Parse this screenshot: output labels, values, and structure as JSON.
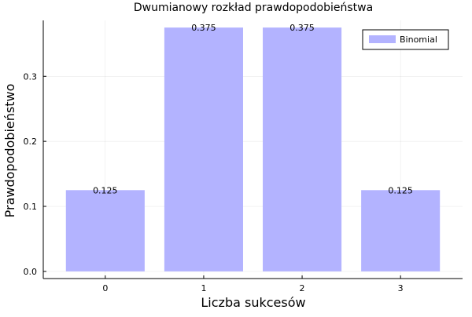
{
  "chart_data": {
    "type": "bar",
    "title": "Dwumianowy rozkład prawdopodobieństwa",
    "xlabel": "Liczba sukcesów",
    "ylabel": "Prawdopodobieństwo",
    "categories": [
      "0",
      "1",
      "2",
      "3"
    ],
    "x": [
      0,
      1,
      2,
      3
    ],
    "series": [
      {
        "name": "Binomial",
        "values": [
          0.125,
          0.375,
          0.375,
          0.125
        ],
        "data_labels": [
          "0.125",
          "0.375",
          "0.375",
          "0.125"
        ],
        "color": "#b3b3ff"
      }
    ],
    "xlim": [
      -0.63,
      3.63
    ],
    "ylim": [
      -0.011,
      0.386
    ],
    "yticks": [
      0.0,
      0.1,
      0.2,
      0.3
    ],
    "ytick_labels": [
      "0.0",
      "0.1",
      "0.2",
      "0.3"
    ],
    "xtick_labels": [
      "0",
      "1",
      "2",
      "3"
    ],
    "bar_width": 0.8,
    "grid": true,
    "legend_position": "top-right"
  }
}
